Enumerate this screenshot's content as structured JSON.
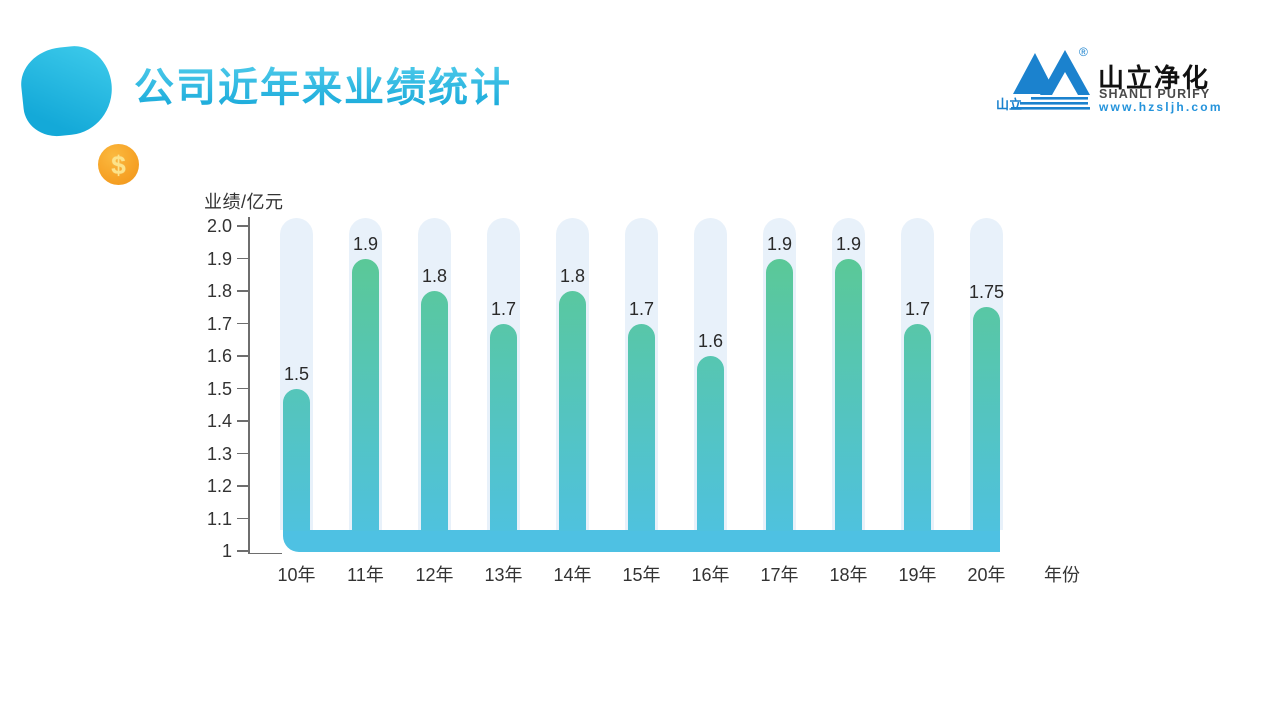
{
  "slide": {
    "title": "公司近年来业绩统计",
    "decor": {
      "coin_symbol": "$"
    }
  },
  "logo": {
    "cn_name": "山立净化",
    "en_name": "SHANLI PURIFY",
    "website": "www.hzsljh.com",
    "icon_label": "山立",
    "registered_mark": "®",
    "brand_blue": "#1B82CE"
  },
  "chart_data": {
    "type": "bar",
    "title": "公司近年来业绩统计",
    "ylabel": "业绩/亿元",
    "xlabel": "年份",
    "categories": [
      "10年",
      "11年",
      "12年",
      "13年",
      "14年",
      "15年",
      "16年",
      "17年",
      "18年",
      "19年",
      "20年"
    ],
    "values": [
      1.5,
      1.9,
      1.8,
      1.7,
      1.8,
      1.7,
      1.6,
      1.9,
      1.9,
      1.7,
      1.75
    ],
    "data_labels": [
      "1.5",
      "1.9",
      "1.8",
      "1.7",
      "1.8",
      "1.7",
      "1.6",
      "1.9",
      "1.9",
      "1.7",
      "1.75"
    ],
    "ylim": [
      1.0,
      2.0
    ],
    "yticks": [
      "2.0",
      "1.9",
      "1.8",
      "1.7",
      "1.6",
      "1.5",
      "1.4",
      "1.3",
      "1.2",
      "1.1",
      "1"
    ],
    "ytick_values": [
      2.0,
      1.9,
      1.8,
      1.7,
      1.6,
      1.5,
      1.4,
      1.3,
      1.2,
      1.1,
      1.0
    ],
    "grid": false,
    "legend": "none",
    "colors": {
      "bar_gradient_top": "#5CC98F",
      "bar_gradient_bottom": "#4EC1E3",
      "track": "#E8F1FA",
      "axis": "#6E6E6E",
      "tick_label": "#333333",
      "value_label": "#2A2A2A"
    }
  }
}
